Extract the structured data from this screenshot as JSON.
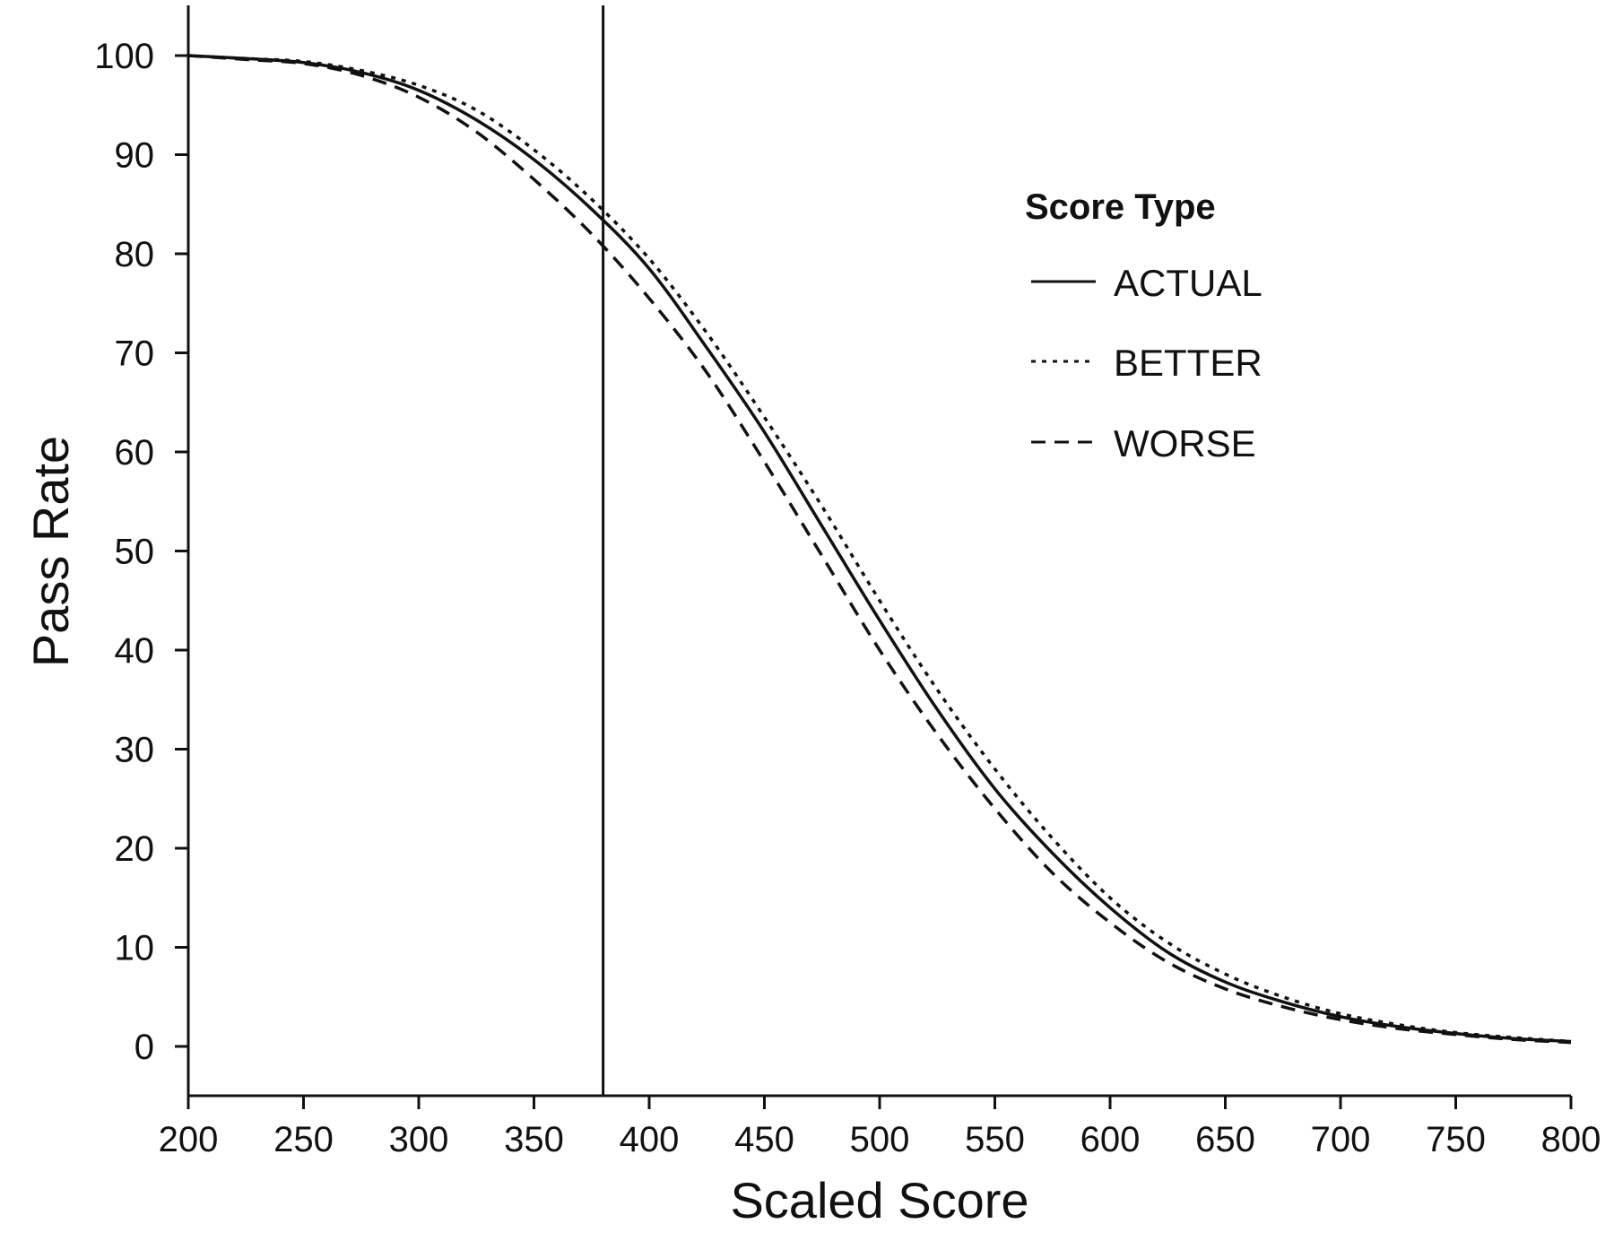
{
  "chart_data": {
    "type": "line",
    "xlabel": "Scaled Score",
    "ylabel": "Pass Rate",
    "xlim": [
      200,
      800
    ],
    "ylim": [
      -5,
      100
    ],
    "xticks": [
      200,
      250,
      300,
      350,
      400,
      450,
      500,
      550,
      600,
      650,
      700,
      750,
      800
    ],
    "yticks": [
      0,
      10,
      20,
      30,
      40,
      50,
      60,
      70,
      80,
      90,
      100
    ],
    "grid": false,
    "reference_line_x": 380,
    "legend": {
      "title": "Score Type",
      "placement": "top-right"
    },
    "x": [
      200,
      225,
      250,
      275,
      300,
      325,
      350,
      375,
      400,
      425,
      450,
      475,
      500,
      525,
      550,
      575,
      600,
      625,
      650,
      675,
      700,
      725,
      750,
      775,
      800
    ],
    "series": [
      {
        "name": "ACTUAL",
        "dash": "solid",
        "values": [
          100,
          99.7,
          99.3,
          98.3,
          96.5,
          93.5,
          89.5,
          84.5,
          78.5,
          70.5,
          62,
          52.5,
          43,
          34,
          26,
          19.5,
          14,
          9.5,
          6.5,
          4.5,
          3,
          2,
          1.3,
          0.8,
          0.5
        ]
      },
      {
        "name": "BETTER",
        "dash": "dotted",
        "values": [
          100,
          99.7,
          99.4,
          98.5,
          97,
          94.5,
          90.5,
          85.5,
          79.5,
          72,
          63.5,
          54.5,
          45,
          36,
          28,
          21,
          15,
          10.5,
          7.3,
          5,
          3.3,
          2.2,
          1.4,
          0.9,
          0.5
        ]
      },
      {
        "name": "WORSE",
        "dash": "dashed",
        "values": [
          100,
          99.6,
          99.2,
          98,
          95.8,
          92.3,
          87.5,
          82,
          75.5,
          68,
          59,
          49.5,
          40,
          31.5,
          24,
          17.5,
          12.5,
          8.5,
          5.8,
          4,
          2.7,
          1.8,
          1.2,
          0.7,
          0.4
        ]
      }
    ]
  }
}
